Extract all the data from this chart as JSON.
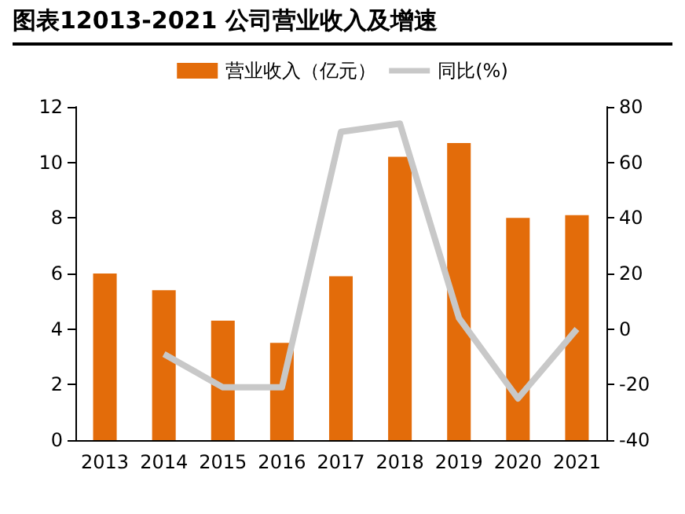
{
  "chart_data": {
    "type": "bar",
    "title": "图表12013-2021 公司营业收入及增速",
    "categories": [
      "2013",
      "2014",
      "2015",
      "2016",
      "2017",
      "2018",
      "2019",
      "2020",
      "2021"
    ],
    "series": [
      {
        "name": "营业收入（亿元）",
        "color": "#e36c0a",
        "values": [
          6.0,
          5.4,
          4.3,
          3.5,
          5.9,
          10.2,
          10.7,
          8.0,
          8.1
        ]
      },
      {
        "name": "同比(%)",
        "type": "line",
        "axis": "y2",
        "color": "#c8c8c8",
        "marker": "none",
        "values": [
          null,
          -9,
          -21,
          -21,
          71,
          74,
          4,
          -25,
          0
        ]
      }
    ],
    "ylim": [
      0,
      12
    ],
    "yticks": [
      0,
      2,
      4,
      6,
      8,
      10,
      12
    ],
    "y2lim": [
      -40,
      80
    ],
    "y2ticks": [
      -40,
      -20,
      0,
      20,
      40,
      60,
      80
    ],
    "grid": false,
    "legend": "top"
  }
}
